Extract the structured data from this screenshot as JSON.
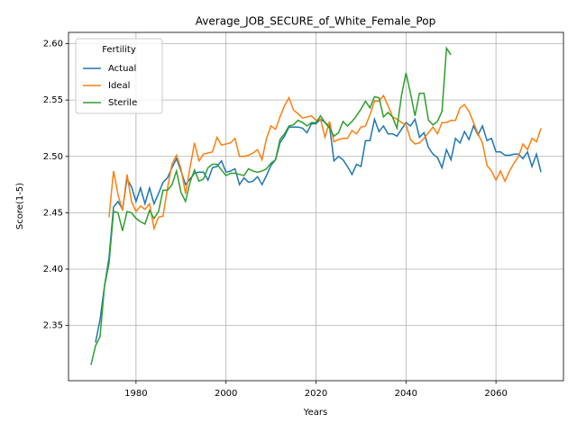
{
  "chart_data": {
    "type": "line",
    "title": "Average_JOB_SECURE_of_White_Female_Pop",
    "xlabel": "Years",
    "ylabel": "Score(1-5)",
    "legend_title": "Fertility",
    "legend": "upper left",
    "grid": true,
    "xlim": [
      1965,
      2075
    ],
    "ylim": [
      2.301,
      2.61
    ],
    "xticks": [
      1980,
      2000,
      2020,
      2040,
      2060
    ],
    "yticks": [
      2.35,
      {
        "value": 2.4,
        "label": "2.40"
      },
      2.45,
      {
        "value": 2.5,
        "label": "2.50"
      },
      2.55,
      {
        "value": 2.6,
        "label": "2.60"
      }
    ],
    "x": [
      1970,
      1971,
      1972,
      1973,
      1974,
      1975,
      1976,
      1977,
      1978,
      1979,
      1980,
      1981,
      1982,
      1983,
      1984,
      1985,
      1986,
      1987,
      1988,
      1989,
      1990,
      1991,
      1992,
      1993,
      1994,
      1995,
      1996,
      1997,
      1998,
      1999,
      2000,
      2001,
      2002,
      2003,
      2004,
      2005,
      2006,
      2007,
      2008,
      2009,
      2010,
      2011,
      2012,
      2013,
      2014,
      2015,
      2016,
      2017,
      2018,
      2019,
      2020,
      2021,
      2022,
      2023,
      2024,
      2025,
      2026,
      2027,
      2028,
      2029,
      2030,
      2031,
      2032,
      2033,
      2034,
      2035,
      2036,
      2037,
      2038,
      2039,
      2040,
      2041,
      2042,
      2043,
      2044,
      2045,
      2046,
      2047,
      2048,
      2049,
      2050,
      2051,
      2052,
      2053,
      2054,
      2055,
      2056,
      2057,
      2058,
      2059,
      2060,
      2061,
      2062,
      2063,
      2064,
      2065,
      2066,
      2067,
      2068,
      2069,
      2070
    ],
    "series": [
      {
        "name": "Actual",
        "color": "#1f77b4",
        "values": [
          null,
          2.335,
          2.355,
          2.385,
          2.41,
          2.455,
          2.46,
          2.453,
          2.48,
          2.473,
          2.46,
          2.472,
          2.458,
          2.472,
          2.458,
          2.467,
          2.477,
          2.481,
          2.49,
          2.498,
          2.487,
          2.475,
          2.48,
          2.485,
          2.486,
          2.486,
          2.479,
          2.49,
          2.491,
          2.496,
          2.486,
          2.487,
          2.489,
          2.475,
          2.481,
          2.477,
          2.478,
          2.482,
          2.475,
          2.483,
          2.492,
          2.497,
          2.512,
          2.518,
          2.526,
          2.526,
          2.526,
          2.525,
          2.521,
          2.529,
          2.529,
          2.533,
          2.53,
          2.527,
          2.496,
          2.5,
          2.497,
          2.491,
          2.484,
          2.493,
          2.491,
          2.514,
          2.514,
          2.533,
          2.522,
          2.527,
          2.52,
          2.52,
          2.518,
          2.524,
          2.53,
          2.527,
          2.533,
          2.517,
          2.521,
          2.508,
          2.502,
          2.499,
          2.49,
          2.506,
          2.497,
          2.516,
          2.512,
          2.522,
          2.515,
          2.527,
          2.519,
          2.527,
          2.514,
          2.516,
          2.504,
          2.504,
          2.501,
          2.501,
          2.502,
          2.502,
          2.498,
          2.504,
          2.491,
          2.502,
          2.486
        ]
      },
      {
        "name": "Ideal",
        "color": "#ff7f0e",
        "values": [
          null,
          null,
          null,
          null,
          2.446,
          2.487,
          2.466,
          2.452,
          2.484,
          2.46,
          2.451,
          2.456,
          2.453,
          2.458,
          2.436,
          2.446,
          2.447,
          2.472,
          2.493,
          2.501,
          2.489,
          2.467,
          2.49,
          2.512,
          2.496,
          2.502,
          2.503,
          2.504,
          2.517,
          2.51,
          2.511,
          2.512,
          2.516,
          2.5,
          2.5,
          2.501,
          2.503,
          2.506,
          2.497,
          2.516,
          2.527,
          2.524,
          2.535,
          2.545,
          2.552,
          2.541,
          2.538,
          2.534,
          2.535,
          2.536,
          2.532,
          2.533,
          2.517,
          2.531,
          2.513,
          2.515,
          2.516,
          2.516,
          2.523,
          2.52,
          2.526,
          2.527,
          2.537,
          2.549,
          2.549,
          2.554,
          2.545,
          2.535,
          2.533,
          2.53,
          2.528,
          2.515,
          2.511,
          2.512,
          2.516,
          2.521,
          2.526,
          2.52,
          2.53,
          2.53,
          2.532,
          2.532,
          2.543,
          2.546,
          2.54,
          2.53,
          2.52,
          2.512,
          2.492,
          2.487,
          2.479,
          2.487,
          2.478,
          2.487,
          2.494,
          2.5,
          2.511,
          2.506,
          2.516,
          2.513,
          2.525
        ]
      },
      {
        "name": "Sterile",
        "color": "#2ca02c",
        "values": [
          2.315,
          2.332,
          2.34,
          2.385,
          2.405,
          2.451,
          2.45,
          2.434,
          2.451,
          2.45,
          2.445,
          2.442,
          2.44,
          2.452,
          2.445,
          2.451,
          2.47,
          2.47,
          2.475,
          2.487,
          2.468,
          2.46,
          2.477,
          2.488,
          2.478,
          2.48,
          2.49,
          2.493,
          2.493,
          2.488,
          2.483,
          2.485,
          2.485,
          2.484,
          2.483,
          2.489,
          2.487,
          2.486,
          2.487,
          2.489,
          2.494,
          2.497,
          2.515,
          2.52,
          2.527,
          2.528,
          2.532,
          2.53,
          2.527,
          2.53,
          2.53,
          2.536,
          2.53,
          2.525,
          2.518,
          2.521,
          2.531,
          2.527,
          2.531,
          2.536,
          2.542,
          2.549,
          2.543,
          2.553,
          2.552,
          2.535,
          2.539,
          2.535,
          2.525,
          2.554,
          2.574,
          2.556,
          2.536,
          2.556,
          2.556,
          2.532,
          2.528,
          2.531,
          2.54,
          2.596,
          2.59,
          null,
          null,
          null,
          null,
          null,
          null,
          null,
          null,
          null,
          null,
          null,
          null,
          null,
          null,
          null,
          null,
          null,
          null,
          null,
          null
        ]
      }
    ]
  }
}
